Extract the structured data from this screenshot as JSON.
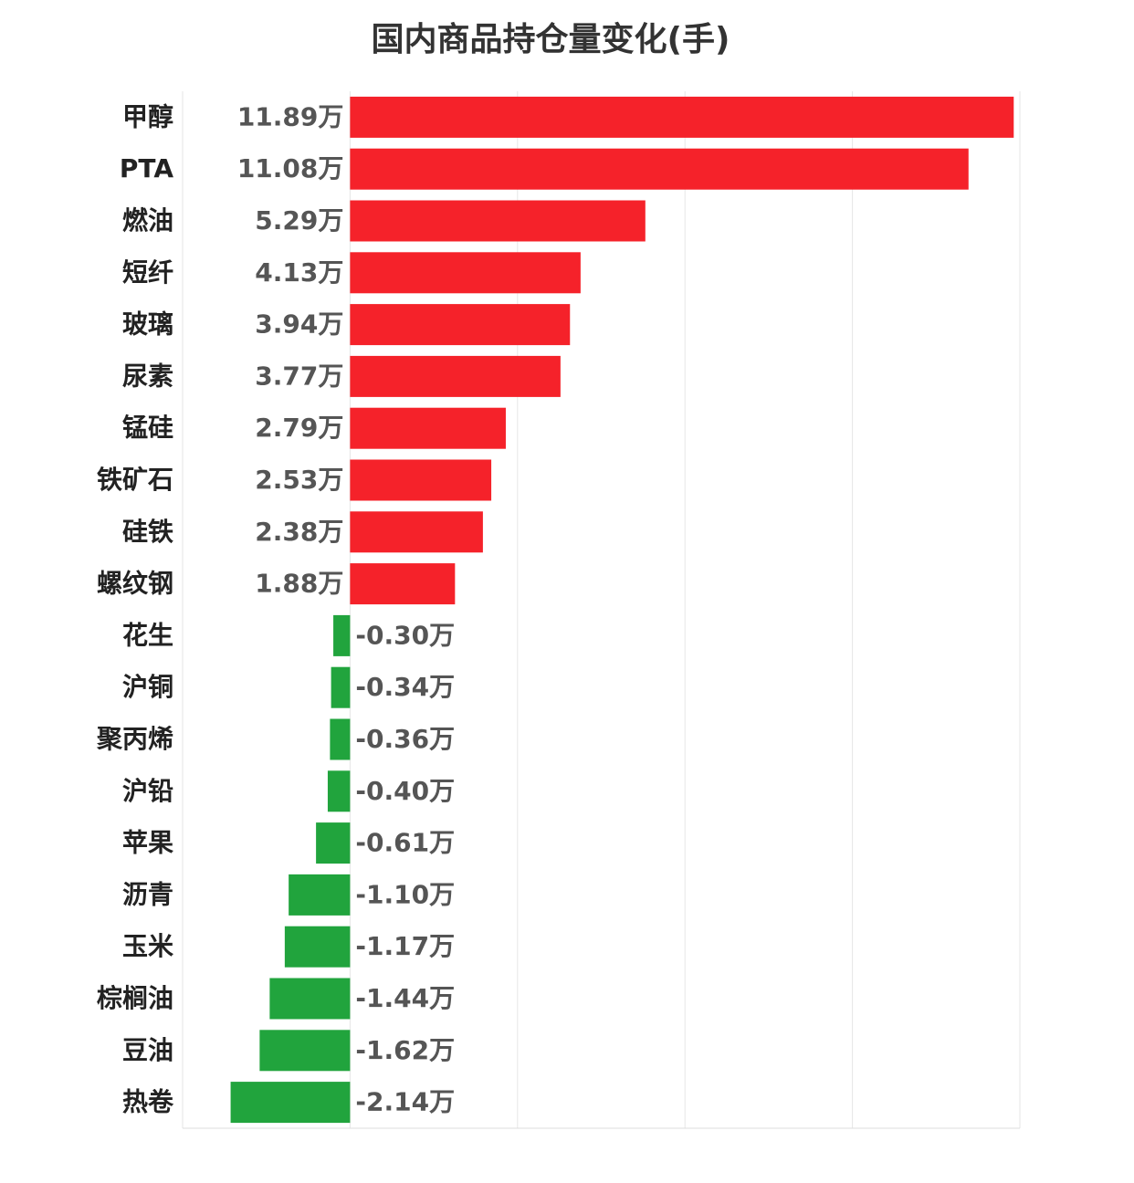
{
  "chart_data": {
    "type": "bar",
    "orientation": "horizontal",
    "title": "国内商品持仓量变化(手)",
    "categories": [
      "甲醇",
      "PTA",
      "燃油",
      "短纤",
      "玻璃",
      "尿素",
      "锰硅",
      "铁矿石",
      "硅铁",
      "螺纹钢",
      "花生",
      "沪铜",
      "聚丙烯",
      "沪铅",
      "苹果",
      "沥青",
      "玉米",
      "棕榈油",
      "豆油",
      "热卷"
    ],
    "values": [
      11.89,
      11.08,
      5.29,
      4.13,
      3.94,
      3.77,
      2.79,
      2.53,
      2.38,
      1.88,
      -0.3,
      -0.34,
      -0.36,
      -0.4,
      -0.61,
      -1.1,
      -1.17,
      -1.44,
      -1.62,
      -2.14
    ],
    "value_labels": [
      "11.89万",
      "11.08万",
      "5.29万",
      "4.13万",
      "3.94万",
      "3.77万",
      "2.79万",
      "2.53万",
      "2.38万",
      "1.88万",
      "-0.30万",
      "-0.34万",
      "-0.36万",
      "-0.40万",
      "-0.61万",
      "-1.10万",
      "-1.17万",
      "-1.44万",
      "-1.62万",
      "-2.14万"
    ],
    "positive_color": "#f5222a",
    "negative_color": "#21a43d",
    "xlim": [
      -3,
      12
    ],
    "xticks": [
      -3,
      0,
      3,
      6,
      9,
      12
    ],
    "grid": true
  }
}
